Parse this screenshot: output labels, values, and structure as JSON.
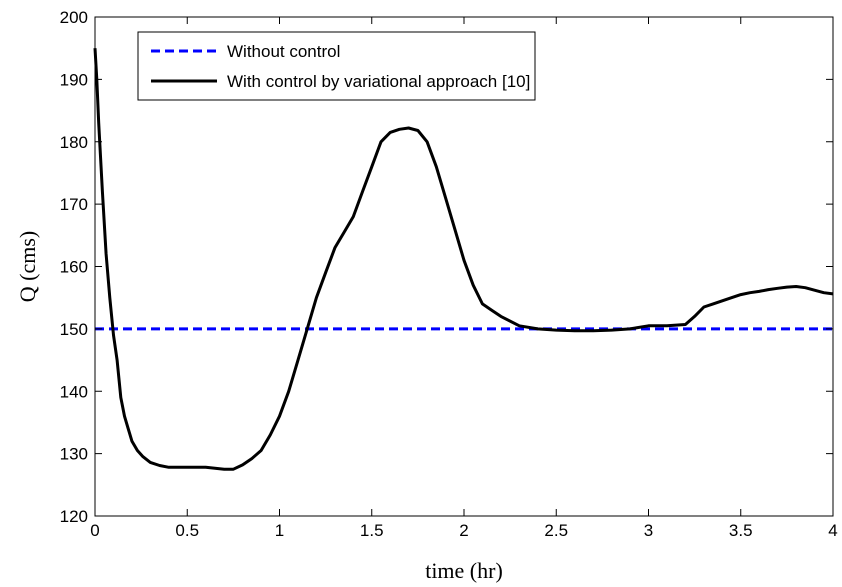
{
  "chart_data": {
    "type": "line",
    "title": "",
    "xlabel": "time (hr)",
    "ylabel": "Q (cms)",
    "xlim": [
      0,
      4
    ],
    "ylim": [
      120,
      200
    ],
    "xticks": [
      0,
      0.5,
      1,
      1.5,
      2,
      2.5,
      3,
      3.5,
      4
    ],
    "xtick_labels": [
      "0",
      "0.5",
      "1",
      "1.5",
      "2",
      "2.5",
      "3",
      "3.5",
      "4"
    ],
    "yticks": [
      120,
      130,
      140,
      150,
      160,
      170,
      180,
      190,
      200
    ],
    "ytick_labels": [
      "120",
      "130",
      "140",
      "150",
      "160",
      "170",
      "180",
      "190",
      "200"
    ],
    "grid": false,
    "legend_position": "top-left",
    "series": [
      {
        "name": "Without control",
        "color": "#0000ff",
        "style": "dashed",
        "x": [
          0,
          4
        ],
        "y": [
          150,
          150
        ]
      },
      {
        "name": "With control by variational approach [10]",
        "color": "#000000",
        "style": "solid",
        "x": [
          0,
          0.01,
          0.02,
          0.04,
          0.06,
          0.08,
          0.1,
          0.12,
          0.14,
          0.16,
          0.18,
          0.2,
          0.23,
          0.26,
          0.3,
          0.35,
          0.4,
          0.45,
          0.5,
          0.6,
          0.7,
          0.75,
          0.8,
          0.85,
          0.9,
          0.95,
          1.0,
          1.05,
          1.1,
          1.15,
          1.2,
          1.25,
          1.3,
          1.35,
          1.4,
          1.45,
          1.5,
          1.55,
          1.6,
          1.65,
          1.7,
          1.75,
          1.8,
          1.85,
          1.9,
          1.95,
          2.0,
          2.05,
          2.1,
          2.15,
          2.2,
          2.3,
          2.4,
          2.5,
          2.6,
          2.7,
          2.8,
          2.9,
          3.0,
          3.1,
          3.2,
          3.25,
          3.3,
          3.35,
          3.4,
          3.45,
          3.5,
          3.55,
          3.6,
          3.65,
          3.7,
          3.75,
          3.8,
          3.85,
          3.9,
          3.95,
          4.0
        ],
        "y": [
          195,
          190,
          183,
          172,
          162,
          155,
          149,
          145,
          139,
          136,
          134,
          132,
          130.5,
          129.5,
          128.6,
          128.1,
          127.8,
          127.8,
          127.8,
          127.8,
          127.5,
          127.5,
          128.2,
          129.2,
          130.5,
          133,
          136,
          140,
          145,
          150,
          155,
          159,
          163,
          165.5,
          168,
          172,
          176,
          180,
          181.5,
          182,
          182.2,
          181.8,
          180,
          176,
          171,
          166,
          161,
          157,
          154,
          153,
          152,
          150.5,
          150,
          149.8,
          149.7,
          149.7,
          149.8,
          150,
          150.5,
          150.5,
          150.7,
          152,
          153.5,
          154,
          154.5,
          155,
          155.5,
          155.8,
          156,
          156.3,
          156.5,
          156.7,
          156.8,
          156.6,
          156.2,
          155.8,
          155.6
        ]
      }
    ]
  }
}
